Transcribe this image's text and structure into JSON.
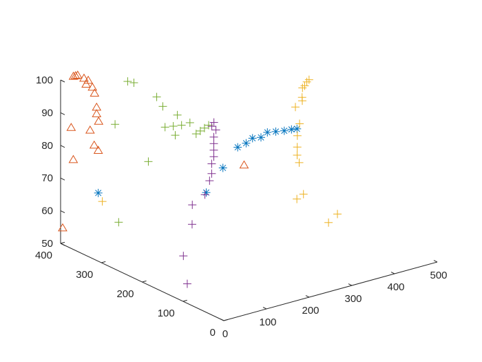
{
  "chart_data": {
    "type": "scatter",
    "dimensions": 3,
    "title": "",
    "xlabel": "",
    "ylabel": "",
    "zlabel": "",
    "xlim": [
      0,
      500
    ],
    "ylim": [
      0,
      400
    ],
    "zlim": [
      50,
      100
    ],
    "grid": false,
    "x_ticks": [
      "0",
      "100",
      "200",
      "300",
      "400",
      "500"
    ],
    "y_ticks": [
      "0",
      "100",
      "200",
      "300",
      "400"
    ],
    "z_ticks": [
      "50",
      "60",
      "70",
      "80",
      "90",
      "100"
    ],
    "series": [
      {
        "marker": "asterisk",
        "color": "#0072BD",
        "points": [
          [
            50,
            360,
            66
          ],
          [
            150,
            200,
            72
          ],
          [
            170,
            180,
            80
          ],
          [
            195,
            170,
            86
          ],
          [
            210,
            165,
            87
          ],
          [
            225,
            165,
            88
          ],
          [
            240,
            160,
            88
          ],
          [
            255,
            160,
            89
          ],
          [
            270,
            155,
            89
          ],
          [
            285,
            150,
            89
          ],
          [
            300,
            148,
            89
          ],
          [
            310,
            145,
            89
          ]
        ]
      },
      {
        "marker": "triangle",
        "color": "#D95319",
        "points": [
          [
            0,
            395,
            55
          ],
          [
            20,
            395,
            85
          ],
          [
            25,
            395,
            75
          ],
          [
            30,
            400,
            100
          ],
          [
            35,
            400,
            100
          ],
          [
            40,
            400,
            100
          ],
          [
            55,
            395,
            97
          ],
          [
            50,
            395,
            99
          ],
          [
            60,
            395,
            98
          ],
          [
            70,
            390,
            94
          ],
          [
            65,
            390,
            96
          ],
          [
            70,
            385,
            90
          ],
          [
            70,
            385,
            88
          ],
          [
            70,
            380,
            86
          ],
          [
            50,
            380,
            84
          ],
          [
            50,
            370,
            80
          ],
          [
            50,
            360,
            79
          ],
          [
            210,
            170,
            80
          ]
        ]
      },
      {
        "marker": "plus",
        "color": "#EDB120",
        "points": [
          [
            50,
            350,
            64
          ],
          [
            335,
            175,
            93
          ],
          [
            365,
            190,
            94
          ],
          [
            375,
            200,
            92
          ],
          [
            385,
            210,
            95
          ],
          [
            395,
            215,
            95
          ],
          [
            400,
            215,
            96
          ],
          [
            410,
            220,
            96
          ],
          [
            340,
            170,
            88
          ],
          [
            330,
            165,
            85
          ],
          [
            325,
            160,
            82
          ],
          [
            320,
            155,
            80
          ],
          [
            320,
            150,
            78
          ],
          [
            305,
            140,
            68
          ],
          [
            330,
            150,
            68
          ],
          [
            360,
            120,
            60
          ],
          [
            400,
            140,
            60
          ]
        ]
      },
      {
        "marker": "plus",
        "color": "#77AC30",
        "points": [
          [
            50,
            310,
            60
          ],
          [
            110,
            300,
            77
          ],
          [
            75,
            345,
            87
          ],
          [
            130,
            255,
            87
          ],
          [
            140,
            250,
            90
          ],
          [
            150,
            240,
            91
          ],
          [
            135,
            255,
            93
          ],
          [
            120,
            275,
            95
          ],
          [
            120,
            290,
            97
          ],
          [
            100,
            325,
            100
          ],
          [
            95,
            335,
            100
          ],
          [
            130,
            280,
            88
          ],
          [
            135,
            265,
            89
          ],
          [
            155,
            230,
            88
          ],
          [
            160,
            225,
            89
          ],
          [
            165,
            220,
            90
          ],
          [
            170,
            215,
            91
          ]
        ]
      },
      {
        "marker": "plus",
        "color": "#7E2F8E",
        "points": [
          [
            10,
            100,
            55
          ],
          [
            20,
            120,
            62
          ],
          [
            50,
            130,
            70
          ],
          [
            60,
            140,
            75
          ],
          [
            80,
            130,
            78
          ],
          [
            110,
            150,
            80
          ],
          [
            115,
            150,
            82
          ],
          [
            115,
            150,
            85
          ],
          [
            120,
            150,
            89
          ],
          [
            120,
            150,
            91
          ],
          [
            120,
            150,
            93
          ],
          [
            125,
            150,
            95
          ],
          [
            120,
            155,
            96
          ],
          [
            125,
            155,
            97
          ],
          [
            120,
            150,
            87
          ]
        ]
      }
    ]
  }
}
